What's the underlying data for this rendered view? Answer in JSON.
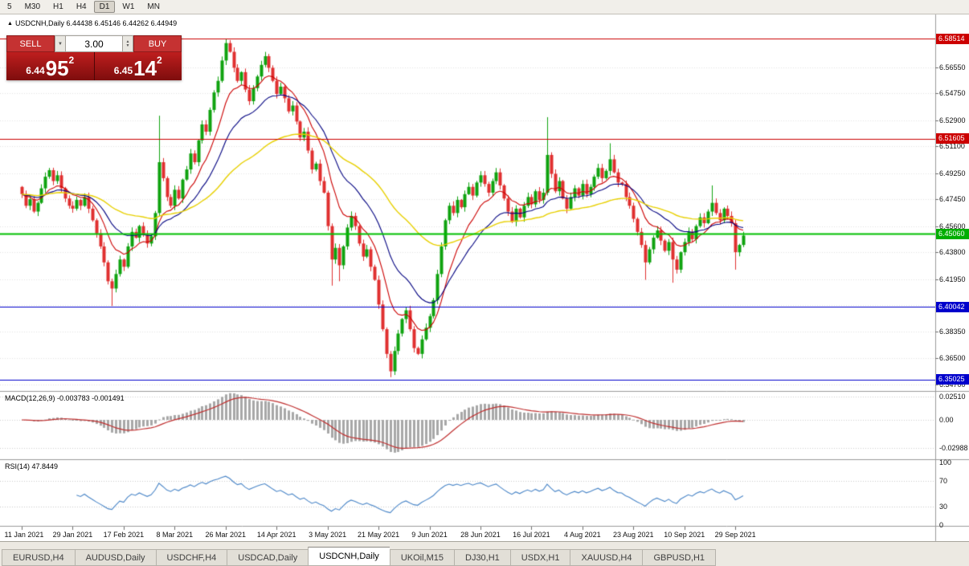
{
  "toolbar": {
    "timeframes": [
      {
        "label": "5",
        "active": false
      },
      {
        "label": "M30",
        "active": false
      },
      {
        "label": "H1",
        "active": false
      },
      {
        "label": "H4",
        "active": false
      },
      {
        "label": "D1",
        "active": true
      },
      {
        "label": "W1",
        "active": false
      },
      {
        "label": "MN",
        "active": false
      }
    ]
  },
  "chart_header": {
    "collapse_icon": "▲",
    "symbol": "USDCNH,Daily",
    "ohlc": "6.44438 6.45146 6.44262 6.44949"
  },
  "trade_panel": {
    "sell_label": "SELL",
    "buy_label": "BUY",
    "volume": "3.00",
    "spin_up": "▲",
    "spin_down": "▼",
    "sell_price": {
      "prefix": "6.44",
      "big": "95",
      "sup": "2"
    },
    "buy_price": {
      "prefix": "6.45",
      "big": "14",
      "sup": "2"
    }
  },
  "chart_data": {
    "type": "candlestick",
    "symbol": "USDCNH",
    "timeframe": "Daily",
    "ohlc_display": {
      "open": "6.44438",
      "high": "6.45146",
      "low": "6.44262",
      "close": "6.44949"
    },
    "x_labels": [
      "11 Jan 2021",
      "29 Jan 2021",
      "17 Feb 2021",
      "8 Mar 2021",
      "26 Mar 2021",
      "14 Apr 2021",
      "3 May 2021",
      "21 May 2021",
      "9 Jun 2021",
      "28 Jun 2021",
      "16 Jul 2021",
      "4 Aug 2021",
      "23 Aug 2021",
      "10 Sep 2021",
      "29 Sep 2021"
    ],
    "bars_per_label": 13,
    "first_open": 6.483,
    "closes": [
      6.478,
      6.47,
      6.4745,
      6.466,
      6.472,
      6.482,
      6.49,
      6.4945,
      6.487,
      6.491,
      6.482,
      6.475,
      6.47,
      6.468,
      6.474,
      6.47,
      6.476,
      6.468,
      6.46,
      6.451,
      6.442,
      6.431,
      6.418,
      6.413,
      6.423,
      6.433,
      6.428,
      6.442,
      6.452,
      6.448,
      6.456,
      6.45,
      6.444,
      6.449,
      6.465,
      6.5,
      6.489,
      6.476,
      6.47,
      6.481,
      6.475,
      6.488,
      6.495,
      6.506,
      6.5,
      6.515,
      6.526,
      6.521,
      6.536,
      6.548,
      6.556,
      6.57,
      6.582,
      6.576,
      6.565,
      6.556,
      6.562,
      6.55,
      6.542,
      6.551,
      6.559,
      6.567,
      6.573,
      6.565,
      6.556,
      6.547,
      6.552,
      6.544,
      6.535,
      6.539,
      6.528,
      6.517,
      6.521,
      6.508,
      6.495,
      6.499,
      6.487,
      6.479,
      6.456,
      6.433,
      6.441,
      6.429,
      6.442,
      6.455,
      6.463,
      6.456,
      6.444,
      6.435,
      6.44,
      6.428,
      6.419,
      6.402,
      6.385,
      6.368,
      6.356,
      6.37,
      6.382,
      6.392,
      6.398,
      6.385,
      6.372,
      6.368,
      6.378,
      6.386,
      6.394,
      6.405,
      6.423,
      6.442,
      6.46,
      6.47,
      6.465,
      6.474,
      6.469,
      6.478,
      6.483,
      6.477,
      6.486,
      6.491,
      6.485,
      6.479,
      6.487,
      6.493,
      6.484,
      6.475,
      6.466,
      6.459,
      6.468,
      6.462,
      6.47,
      6.476,
      6.471,
      6.48,
      6.474,
      6.479,
      6.505,
      6.492,
      6.48,
      6.487,
      6.475,
      6.468,
      6.476,
      6.482,
      6.477,
      6.485,
      6.478,
      6.483,
      6.49,
      6.496,
      6.489,
      6.494,
      6.502,
      6.493,
      6.486,
      6.485,
      6.476,
      6.47,
      6.461,
      6.452,
      6.443,
      6.431,
      6.44,
      6.448,
      6.453,
      6.446,
      6.439,
      6.445,
      6.433,
      6.426,
      6.438,
      6.445,
      6.452,
      6.447,
      6.456,
      6.462,
      6.458,
      6.466,
      6.472,
      6.465,
      6.46,
      6.468,
      6.463,
      6.458,
      6.438,
      6.443,
      6.4495
    ],
    "wick_overrides": {
      "23": [
        null,
        6.401
      ],
      "35": [
        6.532,
        null
      ],
      "52": [
        6.5851,
        null
      ],
      "79": [
        null,
        6.415
      ],
      "81": [
        null,
        6.418
      ],
      "94": [
        null,
        6.352
      ],
      "134": [
        6.531,
        null
      ],
      "150": [
        6.513,
        null
      ],
      "159": [
        null,
        6.419
      ],
      "166": [
        null,
        6.417
      ],
      "176": [
        6.484,
        null
      ],
      "182": [
        null,
        6.426
      ]
    },
    "price_axis": {
      "ticks": [
        "6.56550",
        "6.54750",
        "6.52900",
        "6.51100",
        "6.49250",
        "6.47450",
        "6.45600",
        "6.43800",
        "6.41950",
        "6.40150",
        "6.38350",
        "6.36500",
        "6.34700"
      ],
      "min": 6.343,
      "max": 6.5962
    },
    "hlines": [
      {
        "price": 6.58514,
        "color": "#CC0000",
        "width": 1,
        "badge": "6.58514",
        "badge_bg": "#CC0000"
      },
      {
        "price": 6.51605,
        "color": "#CC0000",
        "width": 1,
        "badge": "6.51605",
        "badge_bg": "#CC0000"
      },
      {
        "price": 6.4506,
        "color": "#00C000",
        "width": 2,
        "badge": "6.45060",
        "badge_bg": "#00AE00"
      },
      {
        "price": 6.40042,
        "color": "#0000CC",
        "width": 1,
        "badge": "6.40042",
        "badge_bg": "#0000CC"
      },
      {
        "price": 6.35025,
        "color": "#0000CC",
        "width": 1,
        "badge": "6.35025",
        "badge_bg": "#0000CC"
      }
    ],
    "moving_averages": [
      {
        "period": 10,
        "color": "#CC0000"
      },
      {
        "period": 21,
        "color": "#000080"
      },
      {
        "period": 55,
        "color": "#E8D000"
      }
    ],
    "macd": {
      "label": "MACD(12,26,9)",
      "current_values": "-0.003783 -0.001491",
      "fast": 12,
      "slow": 26,
      "signal": 9,
      "ticks": [
        {
          "label": "0.02510",
          "value": 0.0251
        },
        {
          "label": "0.00",
          "value": 0
        },
        {
          "label": "-0.02988",
          "value": -0.02988
        }
      ]
    },
    "rsi": {
      "label": "RSI(14)",
      "current_value": "47.8449",
      "period": 14,
      "levels": [
        30,
        70
      ],
      "ticks": [
        {
          "label": "100",
          "value": 100
        },
        {
          "label": "70",
          "value": 70
        },
        {
          "label": "30",
          "value": 30
        },
        {
          "label": "0",
          "value": 0
        }
      ]
    },
    "colors": {
      "up": "#0FA30F",
      "down": "#E03030",
      "grid": "#E3E3E3",
      "macd_hist": "#A8A8A8",
      "macd_signal": "#C03030",
      "rsi_line": "#4A86C8",
      "axis_line": "#9A9A9A"
    }
  },
  "bottom_tabs": {
    "active_index": 4,
    "items": [
      "EURUSD,H4",
      "AUDUSD,Daily",
      "USDCHF,H4",
      "USDCAD,Daily",
      "USDCNH,Daily",
      "UKOil,M15",
      "DJ30,H1",
      "USDX,H1",
      "XAUUSD,H4",
      "GBPUSD,H1"
    ]
  }
}
